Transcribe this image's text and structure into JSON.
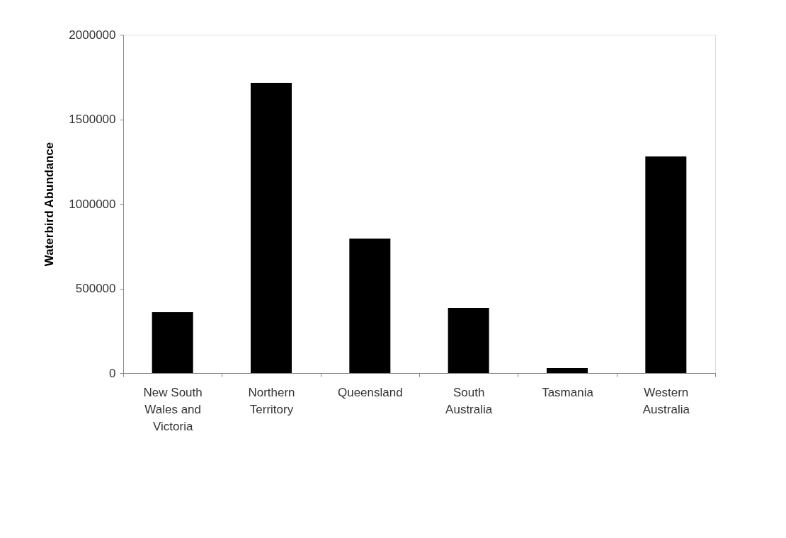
{
  "chart_data": {
    "type": "bar",
    "ylabel": "Waterbird Abundance",
    "categories": [
      "New South Wales and Victoria",
      "Northern Territory",
      "Queensland",
      "South Australia",
      "Tasmania",
      "Western Australia"
    ],
    "values": [
      360000,
      1715000,
      795000,
      385000,
      29000,
      1280000
    ],
    "color": "#000000",
    "ylim": [
      0,
      2000000
    ],
    "yticks": [
      0,
      500000,
      1000000,
      1500000,
      2000000
    ],
    "grid": false
  }
}
